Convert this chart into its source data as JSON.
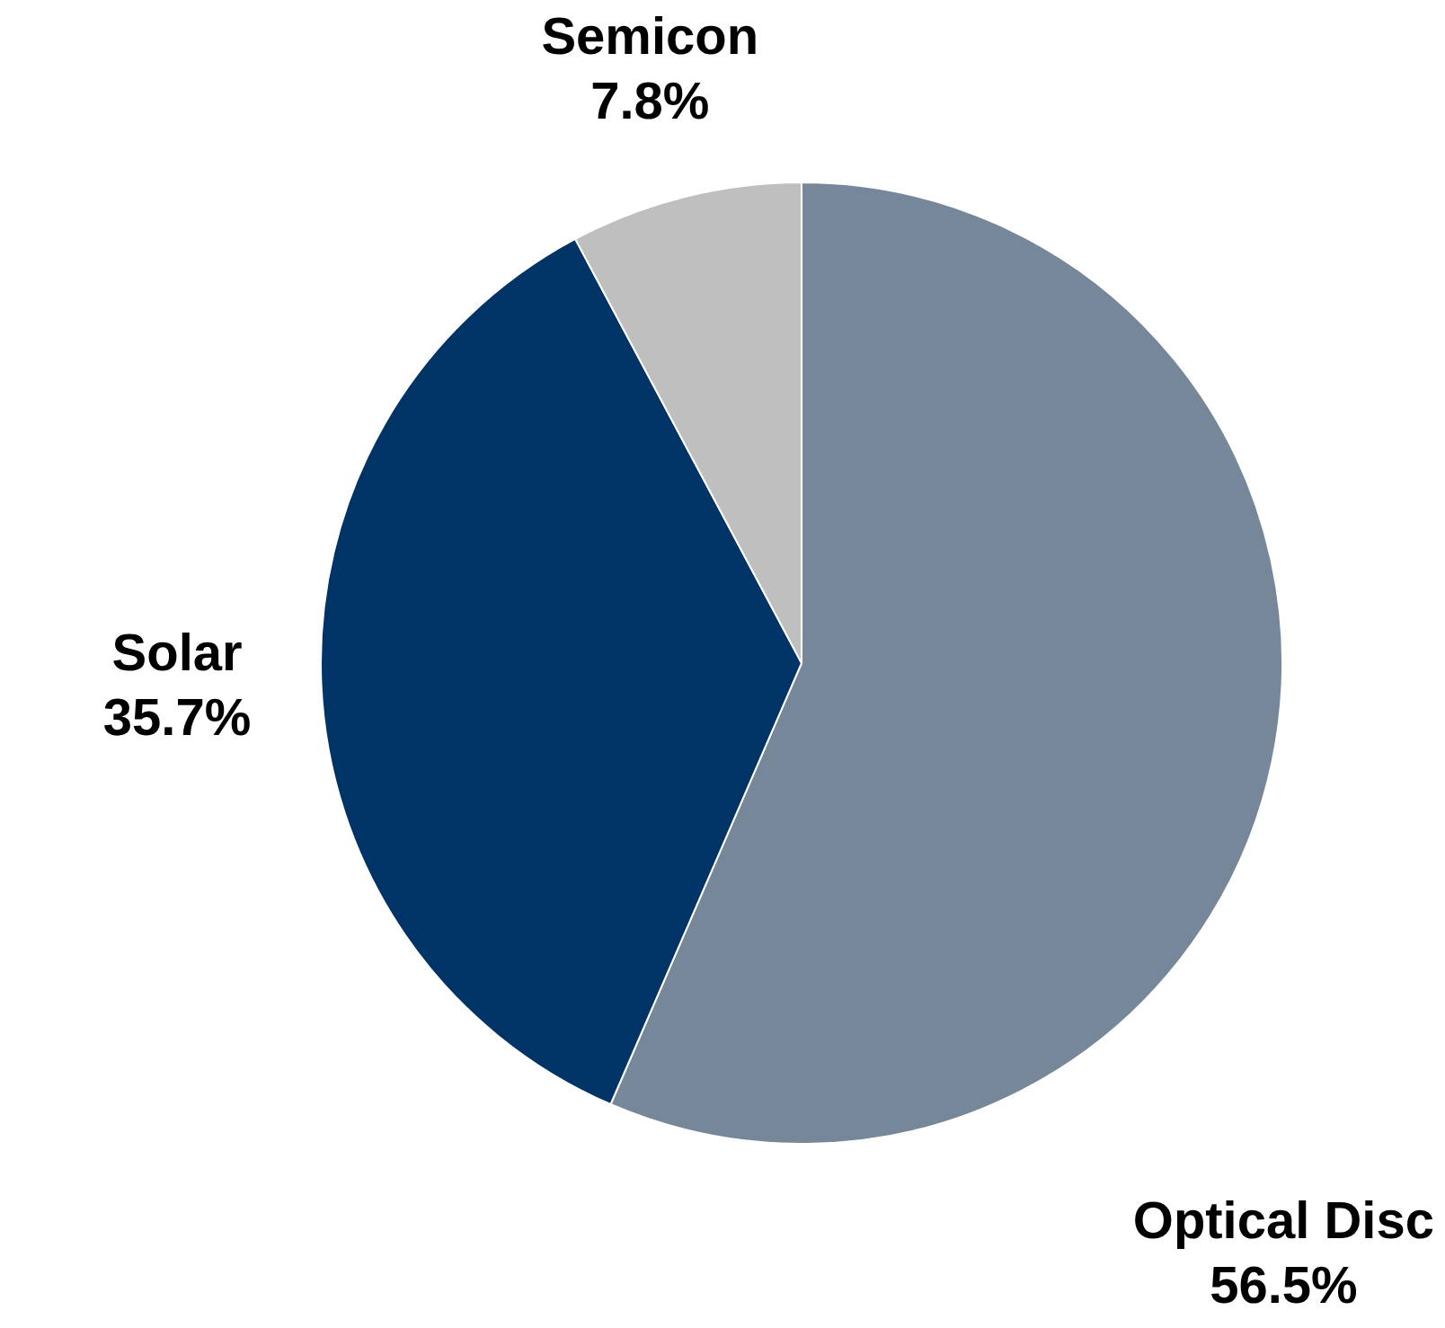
{
  "chart_data": {
    "type": "pie",
    "categories": [
      "Optical Disc",
      "Solar",
      "Semicon"
    ],
    "values": [
      56.5,
      35.7,
      7.8
    ],
    "colors": [
      "#768799",
      "#003366",
      "#bfbfbf"
    ],
    "value_labels": [
      "56.5%",
      "35.7%",
      "7.8%"
    ],
    "legend": false
  }
}
